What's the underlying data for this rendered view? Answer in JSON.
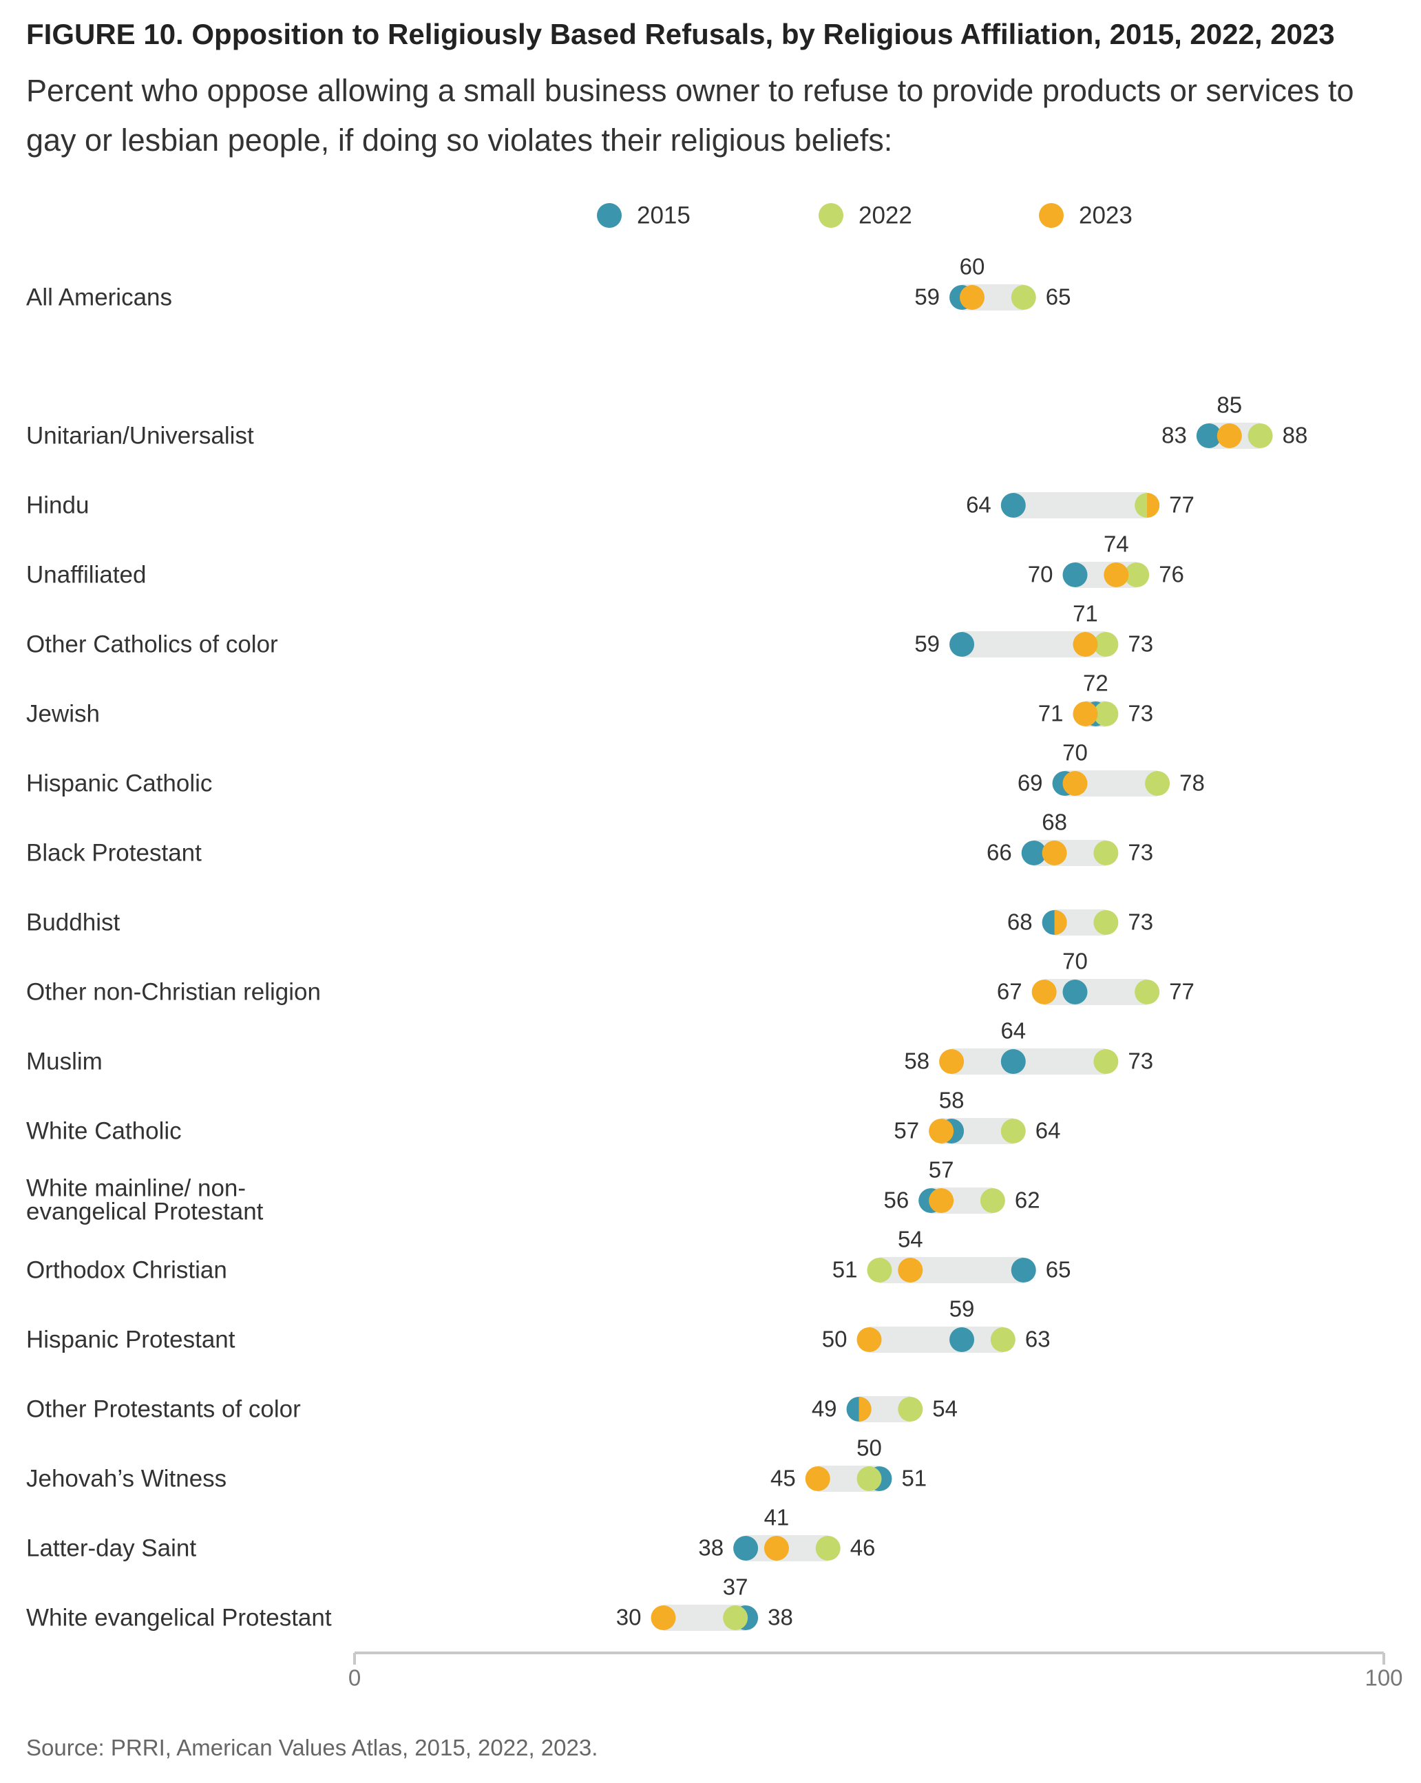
{
  "title": "FIGURE 10.  Opposition to Religiously Based Refusals, by Religious Affiliation, 2015, 2022, 2023",
  "subtitle": "Percent who oppose allowing a small business owner to refuse to provide products or services to gay or lesbian people, if doing so violates their religious beliefs:",
  "source": "Source: PRRI, American Values Atlas, 2015, 2022, 2023.",
  "colors": {
    "2015": "#3a95ad",
    "2022": "#c3da6b",
    "2023": "#f4ad24",
    "bar": "#e7e9e8",
    "axis": "#c8c8c8"
  },
  "chart_data": {
    "type": "dot-range",
    "title": "FIGURE 10.  Opposition to Religiously Based Refusals, by Religious Affiliation, 2015, 2022, 2023",
    "xlim": [
      0,
      100
    ],
    "x_ticks": [
      "0",
      "100"
    ],
    "grid": false,
    "legend_position": "top",
    "series": [
      {
        "name": "2015"
      },
      {
        "name": "2022"
      },
      {
        "name": "2023"
      }
    ],
    "categories": [
      {
        "label": "All Americans",
        "y2015": 59,
        "y2022": 65,
        "y2023": 60
      },
      {
        "label": "Unitarian/Universalist",
        "y2015": 83,
        "y2022": 88,
        "y2023": 85
      },
      {
        "label": "Hindu",
        "y2015": 64,
        "y2022": 77,
        "y2023": 77
      },
      {
        "label": "Unaffiliated",
        "y2015": 70,
        "y2022": 76,
        "y2023": 74
      },
      {
        "label": "Other Catholics of color",
        "y2015": 59,
        "y2022": 73,
        "y2023": 71
      },
      {
        "label": "Jewish",
        "y2015": 72,
        "y2022": 73,
        "y2023": 71
      },
      {
        "label": "Hispanic Catholic",
        "y2015": 69,
        "y2022": 78,
        "y2023": 70
      },
      {
        "label": "Black Protestant",
        "y2015": 66,
        "y2022": 73,
        "y2023": 68
      },
      {
        "label": "Buddhist",
        "y2015": 68,
        "y2022": 73,
        "y2023": 68
      },
      {
        "label": "Other non-Christian religion",
        "y2015": 70,
        "y2022": 77,
        "y2023": 67
      },
      {
        "label": "Muslim",
        "y2015": 64,
        "y2022": 73,
        "y2023": 58
      },
      {
        "label": "White Catholic",
        "y2015": 58,
        "y2022": 64,
        "y2023": 57
      },
      {
        "label": "White mainline/ non-evangelical Protestant",
        "label_lines": [
          "White mainline/ non-",
          "evangelical Protestant"
        ],
        "y2015": 56,
        "y2022": 62,
        "y2023": 57
      },
      {
        "label": "Orthodox Christian",
        "y2015": 65,
        "y2022": 51,
        "y2023": 54
      },
      {
        "label": "Hispanic Protestant",
        "y2015": 59,
        "y2022": 63,
        "y2023": 50
      },
      {
        "label": "Other Protestants of color",
        "y2015": 49,
        "y2022": 54,
        "y2023": 49
      },
      {
        "label": "Jehovah’s Witness",
        "y2015": 51,
        "y2022": 50,
        "y2023": 45
      },
      {
        "label": "Latter-day Saint",
        "y2015": 38,
        "y2022": 46,
        "y2023": 41
      },
      {
        "label": "White evangelical Protestant",
        "y2015": 38,
        "y2022": 37,
        "y2023": 30
      }
    ],
    "point_labels": [
      {
        "low": "59",
        "mid": "60",
        "high": "65"
      },
      {
        "low": "83",
        "mid": "85",
        "high": "88"
      },
      {
        "low": "64",
        "high": "77"
      },
      {
        "low": "70",
        "mid": "74",
        "high": "76"
      },
      {
        "low": "59",
        "mid": "71",
        "high": "73"
      },
      {
        "low": "71",
        "mid": "72",
        "high": "73"
      },
      {
        "low": "69",
        "mid": "70",
        "high": "78"
      },
      {
        "low": "66",
        "mid": "68",
        "high": "73"
      },
      {
        "low": "68",
        "high": "73"
      },
      {
        "low": "67",
        "mid": "70",
        "high": "77"
      },
      {
        "low": "58",
        "mid": "64",
        "high": "73"
      },
      {
        "low": "57",
        "mid": "58",
        "high": "64"
      },
      {
        "low": "56",
        "mid": "57",
        "high": "62"
      },
      {
        "low": "51",
        "mid": "54",
        "high": "65"
      },
      {
        "low": "50",
        "mid": "59",
        "high": "63"
      },
      {
        "low": "49",
        "high": "54"
      },
      {
        "low": "45",
        "mid": "50",
        "high": "51"
      },
      {
        "low": "38",
        "mid": "41",
        "high": "46"
      },
      {
        "low": "30",
        "mid": "37",
        "high": "38"
      }
    ]
  }
}
